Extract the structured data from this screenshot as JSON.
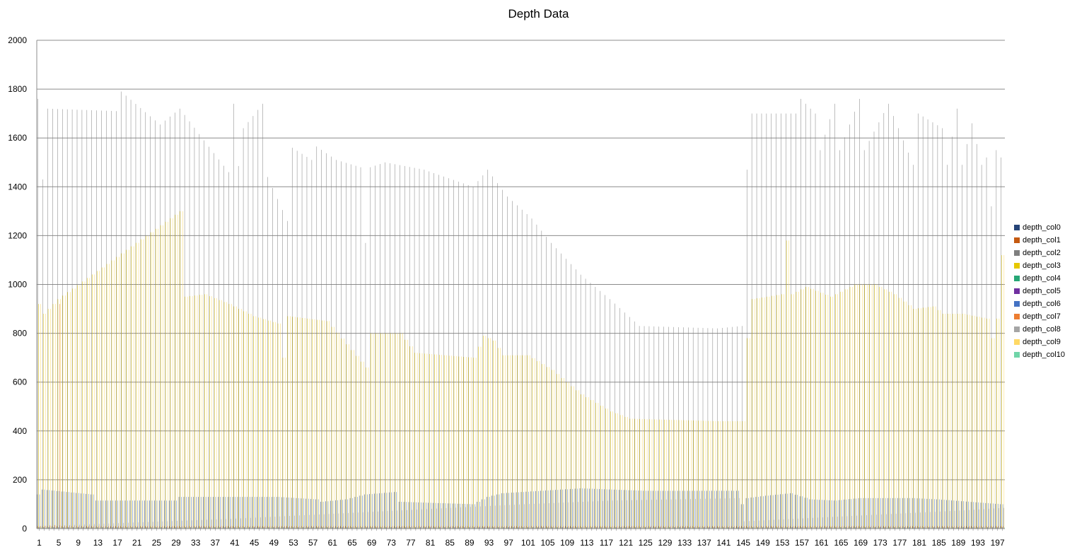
{
  "chart_data": {
    "type": "bar",
    "title": "Depth Data",
    "xlabel": "",
    "ylabel": "",
    "ylim": [
      0,
      2000
    ],
    "y_ticks": [
      0,
      200,
      400,
      600,
      800,
      1000,
      1200,
      1400,
      1600,
      1800,
      2000
    ],
    "grid": true,
    "legend_position": "right",
    "categories_range": [
      1,
      198
    ],
    "x_tick_labels": [
      "1",
      "5",
      "9",
      "13",
      "17",
      "21",
      "25",
      "29",
      "33",
      "37",
      "41",
      "45",
      "49",
      "53",
      "57",
      "61",
      "65",
      "69",
      "73",
      "77",
      "81",
      "85",
      "89",
      "93",
      "97",
      "101",
      "105",
      "109",
      "113",
      "117",
      "121",
      "125",
      "129",
      "133",
      "137",
      "141",
      "145",
      "149",
      "153",
      "157",
      "161",
      "165",
      "169",
      "173",
      "177",
      "181",
      "185",
      "189",
      "193",
      "197"
    ],
    "series": [
      {
        "name": "depth_col0",
        "color": "#264478",
        "control_points": [
          [
            1,
            140
          ],
          [
            2,
            160
          ],
          [
            12,
            140
          ],
          [
            13,
            115
          ],
          [
            29,
            115
          ],
          [
            30,
            130
          ],
          [
            50,
            130
          ],
          [
            58,
            120
          ],
          [
            59,
            110
          ],
          [
            64,
            120
          ],
          [
            68,
            140
          ],
          [
            74,
            150
          ],
          [
            75,
            110
          ],
          [
            90,
            100
          ],
          [
            93,
            130
          ],
          [
            96,
            145
          ],
          [
            100,
            150
          ],
          [
            112,
            165
          ],
          [
            125,
            155
          ],
          [
            144,
            155
          ],
          [
            145,
            100
          ],
          [
            146,
            125
          ],
          [
            150,
            135
          ],
          [
            155,
            145
          ],
          [
            159,
            120
          ],
          [
            164,
            115
          ],
          [
            169,
            125
          ],
          [
            180,
            125
          ],
          [
            185,
            120
          ],
          [
            198,
            100
          ]
        ]
      },
      {
        "name": "depth_col1",
        "color": "#c55a11",
        "control_points": [
          [
            1,
            10
          ],
          [
            198,
            10
          ]
        ]
      },
      {
        "name": "depth_col2",
        "color": "#7f7f7f",
        "control_points": [
          [
            1,
            1760
          ],
          [
            2,
            1430
          ],
          [
            3,
            1720
          ],
          [
            17,
            1710
          ],
          [
            18,
            1790
          ],
          [
            26,
            1655
          ],
          [
            30,
            1720
          ],
          [
            40,
            1460
          ],
          [
            41,
            1740
          ],
          [
            42,
            1485
          ],
          [
            43,
            1640
          ],
          [
            47,
            1740
          ],
          [
            48,
            1440
          ],
          [
            52,
            1260
          ],
          [
            53,
            1560
          ],
          [
            57,
            1510
          ],
          [
            58,
            1565
          ],
          [
            62,
            1510
          ],
          [
            67,
            1480
          ],
          [
            68,
            1170
          ],
          [
            69,
            1480
          ],
          [
            72,
            1500
          ],
          [
            80,
            1470
          ],
          [
            90,
            1400
          ],
          [
            93,
            1470
          ],
          [
            97,
            1360
          ],
          [
            102,
            1270
          ],
          [
            106,
            1170
          ],
          [
            112,
            1040
          ],
          [
            118,
            940
          ],
          [
            124,
            830
          ],
          [
            140,
            820
          ],
          [
            145,
            830
          ],
          [
            146,
            1470
          ],
          [
            147,
            1700
          ],
          [
            156,
            1700
          ],
          [
            157,
            1760
          ],
          [
            160,
            1700
          ],
          [
            161,
            1550
          ],
          [
            164,
            1740
          ],
          [
            165,
            1550
          ],
          [
            169,
            1760
          ],
          [
            170,
            1550
          ],
          [
            175,
            1740
          ],
          [
            180,
            1490
          ],
          [
            181,
            1700
          ],
          [
            186,
            1640
          ],
          [
            187,
            1490
          ],
          [
            189,
            1720
          ],
          [
            190,
            1490
          ],
          [
            192,
            1660
          ],
          [
            194,
            1490
          ],
          [
            195,
            1520
          ],
          [
            196,
            1320
          ],
          [
            197,
            1550
          ],
          [
            198,
            1520
          ]
        ]
      },
      {
        "name": "depth_col3",
        "color": "#e6c800",
        "control_points": [
          [
            1,
            920
          ],
          [
            2,
            880
          ],
          [
            5,
            940
          ],
          [
            30,
            1300
          ],
          [
            31,
            950
          ],
          [
            35,
            960
          ],
          [
            40,
            920
          ],
          [
            45,
            870
          ],
          [
            50,
            840
          ],
          [
            51,
            700
          ],
          [
            52,
            870
          ],
          [
            60,
            850
          ],
          [
            68,
            660
          ],
          [
            69,
            800
          ],
          [
            75,
            800
          ],
          [
            78,
            720
          ],
          [
            90,
            700
          ],
          [
            92,
            790
          ],
          [
            94,
            770
          ],
          [
            96,
            710
          ],
          [
            101,
            710
          ],
          [
            106,
            650
          ],
          [
            112,
            550
          ],
          [
            118,
            480
          ],
          [
            122,
            450
          ],
          [
            140,
            440
          ],
          [
            145,
            440
          ],
          [
            146,
            780
          ],
          [
            147,
            940
          ],
          [
            153,
            960
          ],
          [
            154,
            1180
          ],
          [
            155,
            960
          ],
          [
            158,
            990
          ],
          [
            163,
            950
          ],
          [
            168,
            1000
          ],
          [
            172,
            1000
          ],
          [
            176,
            960
          ],
          [
            180,
            900
          ],
          [
            184,
            910
          ],
          [
            186,
            880
          ],
          [
            189,
            880
          ],
          [
            190,
            880
          ],
          [
            195,
            860
          ],
          [
            196,
            780
          ],
          [
            197,
            860
          ],
          [
            198,
            1120
          ]
        ]
      },
      {
        "name": "depth_col4",
        "color": "#27a776",
        "control_points": [
          [
            1,
            5
          ],
          [
            198,
            5
          ]
        ]
      },
      {
        "name": "depth_col5",
        "color": "#7030a0",
        "control_points": [
          [
            1,
            5
          ],
          [
            198,
            5
          ]
        ]
      },
      {
        "name": "depth_col6",
        "color": "#4472c4",
        "control_points": [
          [
            1,
            140
          ],
          [
            2,
            160
          ],
          [
            12,
            140
          ],
          [
            13,
            115
          ],
          [
            29,
            115
          ],
          [
            30,
            130
          ],
          [
            50,
            130
          ],
          [
            58,
            120
          ],
          [
            59,
            110
          ],
          [
            64,
            120
          ],
          [
            68,
            140
          ],
          [
            74,
            150
          ],
          [
            75,
            110
          ],
          [
            90,
            100
          ],
          [
            93,
            130
          ],
          [
            96,
            145
          ],
          [
            100,
            150
          ],
          [
            112,
            165
          ],
          [
            125,
            155
          ],
          [
            144,
            155
          ],
          [
            145,
            100
          ],
          [
            146,
            125
          ],
          [
            150,
            135
          ],
          [
            155,
            145
          ],
          [
            159,
            120
          ],
          [
            164,
            115
          ],
          [
            169,
            125
          ],
          [
            180,
            125
          ],
          [
            185,
            120
          ],
          [
            198,
            100
          ]
        ]
      },
      {
        "name": "depth_col7",
        "color": "#ed7d31",
        "control_points": [
          [
            1,
            10
          ],
          [
            4,
            15
          ],
          [
            5,
            920
          ],
          [
            6,
            10
          ],
          [
            198,
            10
          ]
        ]
      },
      {
        "name": "depth_col8",
        "color": "#a5a5a5",
        "control_points": [
          [
            1,
            10
          ],
          [
            20,
            25
          ],
          [
            40,
            40
          ],
          [
            60,
            60
          ],
          [
            80,
            80
          ],
          [
            100,
            100
          ],
          [
            118,
            115
          ],
          [
            144,
            125
          ],
          [
            145,
            30
          ],
          [
            150,
            35
          ],
          [
            160,
            45
          ],
          [
            170,
            55
          ],
          [
            180,
            65
          ],
          [
            190,
            75
          ],
          [
            198,
            85
          ]
        ]
      },
      {
        "name": "depth_col9",
        "color": "#ffd966",
        "control_points": [
          [
            1,
            920
          ],
          [
            2,
            880
          ],
          [
            5,
            940
          ],
          [
            30,
            1300
          ],
          [
            31,
            950
          ],
          [
            35,
            960
          ],
          [
            40,
            920
          ],
          [
            45,
            870
          ],
          [
            50,
            840
          ],
          [
            51,
            700
          ],
          [
            52,
            870
          ],
          [
            60,
            850
          ],
          [
            68,
            660
          ],
          [
            69,
            800
          ],
          [
            75,
            800
          ],
          [
            78,
            720
          ],
          [
            90,
            700
          ],
          [
            92,
            790
          ],
          [
            94,
            770
          ],
          [
            96,
            710
          ],
          [
            101,
            710
          ],
          [
            106,
            650
          ],
          [
            112,
            550
          ],
          [
            118,
            480
          ],
          [
            122,
            450
          ],
          [
            140,
            440
          ],
          [
            145,
            440
          ],
          [
            146,
            780
          ],
          [
            147,
            940
          ],
          [
            153,
            960
          ],
          [
            154,
            1180
          ],
          [
            155,
            960
          ],
          [
            158,
            990
          ],
          [
            163,
            950
          ],
          [
            168,
            1000
          ],
          [
            172,
            1000
          ],
          [
            176,
            960
          ],
          [
            180,
            900
          ],
          [
            184,
            910
          ],
          [
            186,
            880
          ],
          [
            189,
            880
          ],
          [
            190,
            880
          ],
          [
            195,
            860
          ],
          [
            196,
            780
          ],
          [
            197,
            860
          ],
          [
            198,
            1120
          ]
        ]
      },
      {
        "name": "depth_col10",
        "color": "#70d5a8",
        "control_points": [
          [
            1,
            5
          ],
          [
            198,
            5
          ]
        ]
      }
    ]
  }
}
